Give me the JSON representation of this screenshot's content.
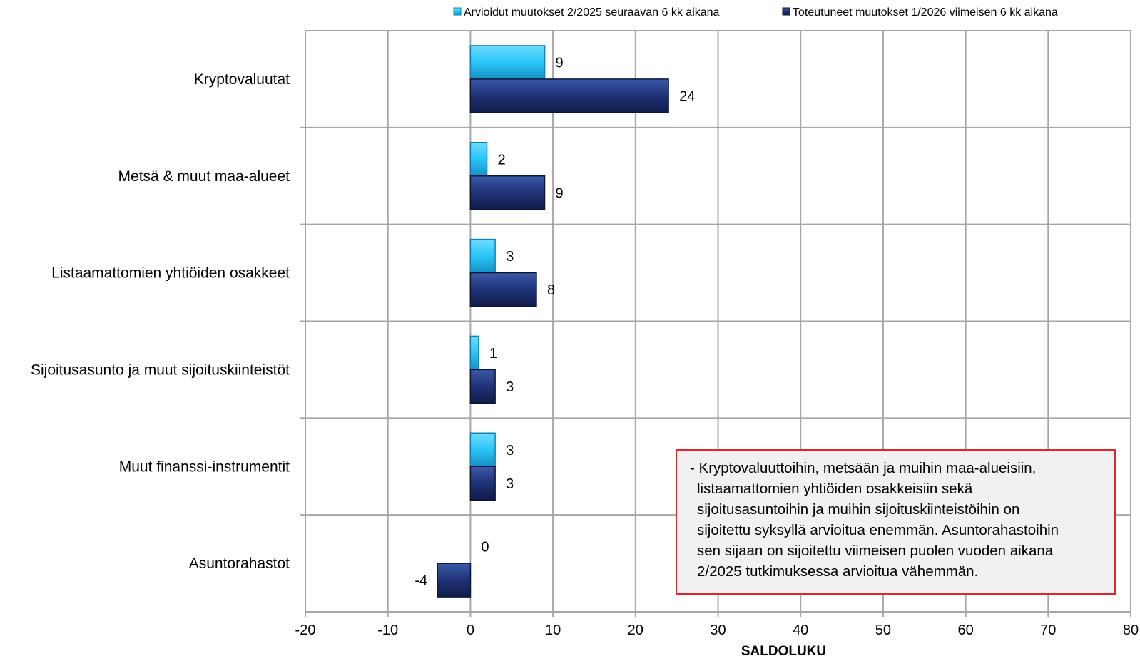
{
  "chart_data": {
    "type": "bar",
    "orientation": "horizontal",
    "categories": [
      "Kryptovaluutat",
      "Metsä & muut maa-alueet",
      "Listaamattomien yhtiöiden osakkeet",
      "Sijoitusasunto ja muut sijoituskiinteistöt",
      "Muut finanssi-instrumentit",
      "Asuntorahastot"
    ],
    "series": [
      {
        "name": "Arvioidut muutokset 2/2025 seuraavan 6 kk aikana",
        "values": [
          9,
          2,
          3,
          1,
          3,
          0
        ],
        "color": "#29c5f6"
      },
      {
        "name": "Toteutuneet muutokset 1/2026 viimeisen 6 kk aikana",
        "values": [
          24,
          9,
          8,
          3,
          3,
          -4
        ],
        "color": "#1f3276"
      }
    ],
    "xlabel": "SALDOLUKU",
    "xlim": [
      -20,
      80
    ],
    "xticks": [
      -20,
      -10,
      0,
      10,
      20,
      30,
      40,
      50,
      60,
      70,
      80
    ],
    "grid": true,
    "legend_position": "top",
    "data_labels": true
  },
  "annotation": {
    "lines": [
      "- Kryptovaluuttoihin, metsään ja muihin maa-alueisiin,",
      "listaamattomien yhtiöiden osakkeisiin sekä",
      "sijoitusasuntoihin ja muihin sijoituskiinteistöihin on",
      "sijoitettu syksyllä arvioitua enemmän. Asuntorahastoihin",
      "sen sijaan on sijoitettu viimeisen puolen vuoden aikana",
      "2/2025 tutkimuksessa arvioitua vähemmän."
    ],
    "border_color": "#e0262b"
  }
}
